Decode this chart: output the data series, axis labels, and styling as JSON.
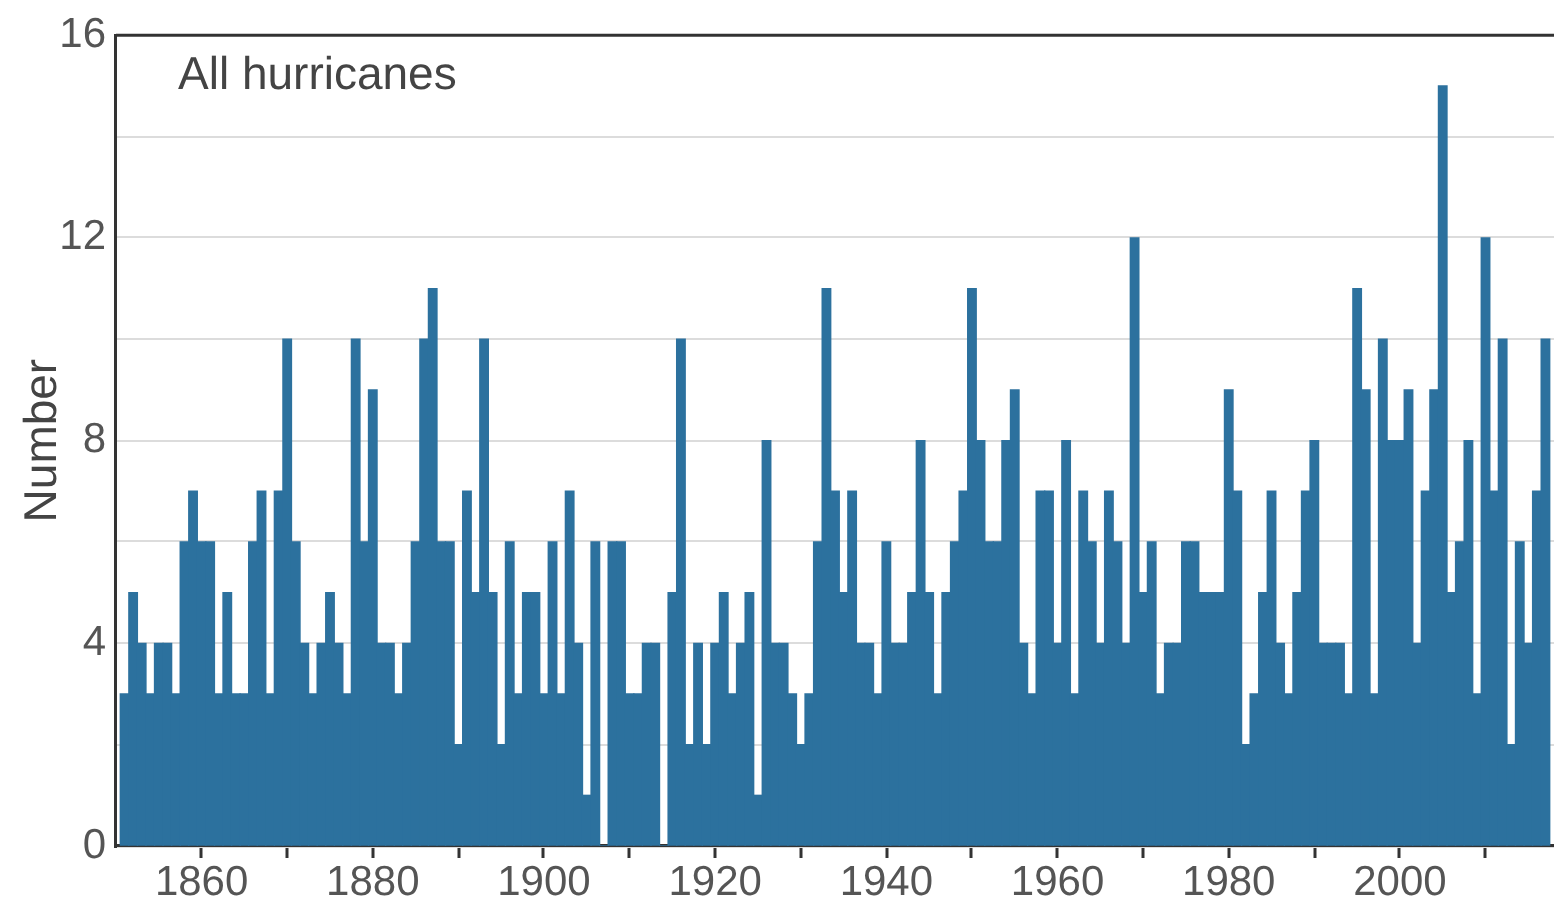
{
  "chart_data": {
    "type": "bar",
    "title": "All hurricanes",
    "ylabel": "Number",
    "x": [
      1851,
      1852,
      1853,
      1854,
      1855,
      1856,
      1857,
      1858,
      1859,
      1860,
      1861,
      1862,
      1863,
      1864,
      1865,
      1866,
      1867,
      1868,
      1869,
      1870,
      1871,
      1872,
      1873,
      1874,
      1875,
      1876,
      1877,
      1878,
      1879,
      1880,
      1881,
      1882,
      1883,
      1884,
      1885,
      1886,
      1887,
      1888,
      1889,
      1890,
      1891,
      1892,
      1893,
      1894,
      1895,
      1896,
      1897,
      1898,
      1899,
      1900,
      1901,
      1902,
      1903,
      1904,
      1905,
      1906,
      1907,
      1908,
      1909,
      1910,
      1911,
      1912,
      1913,
      1914,
      1915,
      1916,
      1917,
      1918,
      1919,
      1920,
      1921,
      1922,
      1923,
      1924,
      1925,
      1926,
      1927,
      1928,
      1929,
      1930,
      1931,
      1932,
      1933,
      1934,
      1935,
      1936,
      1937,
      1938,
      1939,
      1940,
      1941,
      1942,
      1943,
      1944,
      1945,
      1946,
      1947,
      1948,
      1949,
      1950,
      1951,
      1952,
      1953,
      1954,
      1955,
      1956,
      1957,
      1958,
      1959,
      1960,
      1961,
      1962,
      1963,
      1964,
      1965,
      1966,
      1967,
      1968,
      1969,
      1970,
      1971,
      1972,
      1973,
      1974,
      1975,
      1976,
      1977,
      1978,
      1979,
      1980,
      1981,
      1982,
      1983,
      1984,
      1985,
      1986,
      1987,
      1988,
      1989,
      1990,
      1991,
      1992,
      1993,
      1994,
      1995,
      1996,
      1997,
      1998,
      1999,
      2000,
      2001,
      2002,
      2003,
      2004,
      2005,
      2006,
      2007,
      2008,
      2009,
      2010,
      2011,
      2012,
      2013,
      2014,
      2015,
      2016,
      2017
    ],
    "values": [
      3,
      5,
      4,
      3,
      4,
      4,
      3,
      6,
      7,
      6,
      6,
      3,
      5,
      3,
      3,
      6,
      7,
      3,
      7,
      10,
      6,
      4,
      3,
      4,
      5,
      4,
      3,
      10,
      6,
      9,
      4,
      4,
      3,
      4,
      6,
      10,
      11,
      6,
      6,
      2,
      7,
      5,
      10,
      5,
      2,
      6,
      3,
      5,
      5,
      3,
      6,
      3,
      7,
      4,
      1,
      6,
      0,
      6,
      6,
      3,
      3,
      4,
      4,
      0,
      5,
      10,
      2,
      4,
      2,
      4,
      5,
      3,
      4,
      5,
      1,
      8,
      4,
      4,
      3,
      2,
      3,
      6,
      11,
      7,
      5,
      7,
      4,
      4,
      3,
      6,
      4,
      4,
      5,
      8,
      5,
      3,
      5,
      6,
      7,
      11,
      8,
      6,
      6,
      8,
      9,
      4,
      3,
      7,
      7,
      4,
      8,
      3,
      7,
      6,
      4,
      7,
      6,
      4,
      12,
      5,
      6,
      3,
      4,
      4,
      6,
      6,
      5,
      5,
      5,
      9,
      7,
      2,
      3,
      5,
      7,
      4,
      3,
      5,
      7,
      8,
      4,
      4,
      4,
      3,
      11,
      9,
      3,
      10,
      8,
      8,
      9,
      4,
      7,
      9,
      15,
      5,
      6,
      8,
      3,
      12,
      7,
      10,
      2,
      6,
      4,
      7,
      10
    ],
    "color": "#2c719e",
    "xlim": [
      1850,
      2018
    ],
    "xticks": [
      1860,
      {
        "value": 1870,
        "label": null
      },
      1880,
      {
        "value": 1890,
        "label": null
      },
      1900,
      {
        "value": 1910,
        "label": null
      },
      1920,
      {
        "value": 1930,
        "label": null
      },
      1940,
      {
        "value": 1950,
        "label": null
      },
      1960,
      {
        "value": 1970,
        "label": null
      },
      1980,
      {
        "value": 1990,
        "label": null
      },
      2000,
      {
        "value": 2010,
        "label": null
      }
    ],
    "ylim": [
      0,
      16
    ],
    "yticks": [
      0,
      {
        "value": 2,
        "label": null
      },
      4,
      {
        "value": 6,
        "label": null
      },
      8,
      {
        "value": 10,
        "label": null
      },
      12,
      {
        "value": 14,
        "label": null
      },
      16
    ],
    "grid": "y"
  }
}
